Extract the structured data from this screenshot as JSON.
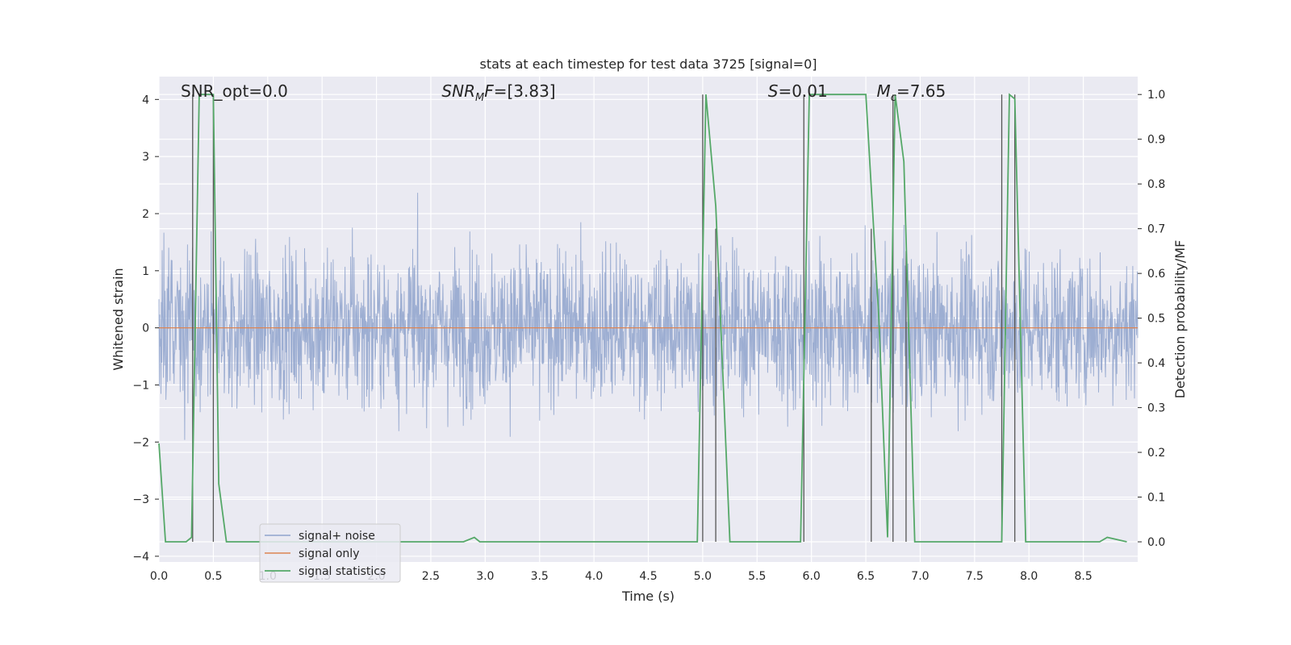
{
  "chart_data": {
    "type": "line",
    "title": "stats at each timestep for test data 3725 [signal=0]",
    "xlabel": "Time (s)",
    "ylabel": "Whitened strain",
    "y2label": "Detection probability/MF",
    "xlim": [
      0.0,
      9.0
    ],
    "ylim": [
      -4.1,
      4.4
    ],
    "y2lim": [
      -0.045,
      1.04
    ],
    "xticks": [
      "0.0",
      "0.5",
      "1.0",
      "1.5",
      "2.0",
      "2.5",
      "3.0",
      "3.5",
      "4.0",
      "4.5",
      "5.0",
      "5.5",
      "6.0",
      "6.5",
      "7.0",
      "7.5",
      "8.0",
      "8.5"
    ],
    "yticks": [
      "4",
      "3",
      "2",
      "1",
      "0",
      "−1",
      "−2",
      "−3",
      "−4"
    ],
    "y2ticks": [
      "1.0",
      "0.9",
      "0.8",
      "0.7",
      "0.6",
      "0.5",
      "0.4",
      "0.3",
      "0.2",
      "0.1",
      "0.0"
    ],
    "grid": true,
    "legend_position": "lower-left",
    "annotations": [
      {
        "id": "snr-opt",
        "text": "SNR_opt=0.0",
        "x": 0.2
      },
      {
        "id": "snr-mf",
        "text": "SNR_MF=[3.83]",
        "x": 2.6
      },
      {
        "id": "s-stat",
        "text": "S=0.01",
        "x": 5.6
      },
      {
        "id": "mc",
        "text": "M_c=7.65",
        "x": 6.6
      }
    ],
    "series": [
      {
        "name": "signal+ noise",
        "color": "#8fa3cc",
        "description_kind": "noise",
        "envelope": {
          "typical_abs": 1.7,
          "max_abs": 4.0
        }
      },
      {
        "name": "signal only",
        "color": "#dd8452",
        "x": [
          0.0,
          9.0
        ],
        "y": [
          0.0,
          0.0
        ]
      },
      {
        "name": "signal statistics",
        "color": "#55a868",
        "axis": "right",
        "x": [
          0.0,
          0.06,
          0.25,
          0.3,
          0.37,
          0.5,
          0.55,
          0.62,
          2.8,
          2.9,
          2.95,
          3.0,
          3.85,
          3.9,
          4.6,
          4.95,
          5.03,
          5.12,
          5.25,
          5.4,
          5.5,
          5.9,
          5.98,
          6.0,
          6.2,
          6.5,
          6.62,
          6.7,
          6.77,
          6.85,
          6.95,
          7.05,
          7.75,
          7.82,
          7.87,
          7.97,
          8.65,
          8.72,
          8.9
        ],
        "y": [
          0.22,
          0.0,
          0.0,
          0.01,
          1.0,
          1.0,
          0.13,
          0.0,
          0.0,
          0.01,
          0.0,
          0.0,
          0.0,
          0.0,
          0.0,
          0.0,
          1.0,
          0.75,
          0.0,
          0.0,
          0.0,
          0.0,
          1.0,
          1.0,
          1.0,
          1.0,
          0.5,
          0.01,
          1.0,
          0.85,
          0.0,
          0.0,
          0.0,
          1.0,
          0.99,
          0.0,
          0.0,
          0.01,
          0.0
        ]
      }
    ],
    "vlines": [
      {
        "x": 0.31,
        "y": [
          0,
          1
        ]
      },
      {
        "x": 0.5,
        "y": [
          0,
          1
        ]
      },
      {
        "x": 5.0,
        "y": [
          0,
          1
        ]
      },
      {
        "x": 5.12,
        "y": [
          0,
          0.7
        ]
      },
      {
        "x": 5.93,
        "y": [
          0,
          1
        ]
      },
      {
        "x": 6.55,
        "y": [
          0,
          0.7
        ]
      },
      {
        "x": 6.75,
        "y": [
          0,
          1
        ]
      },
      {
        "x": 6.87,
        "y": [
          0,
          0.65
        ]
      },
      {
        "x": 7.75,
        "y": [
          0,
          1
        ]
      },
      {
        "x": 7.87,
        "y": [
          0,
          1
        ]
      }
    ]
  }
}
